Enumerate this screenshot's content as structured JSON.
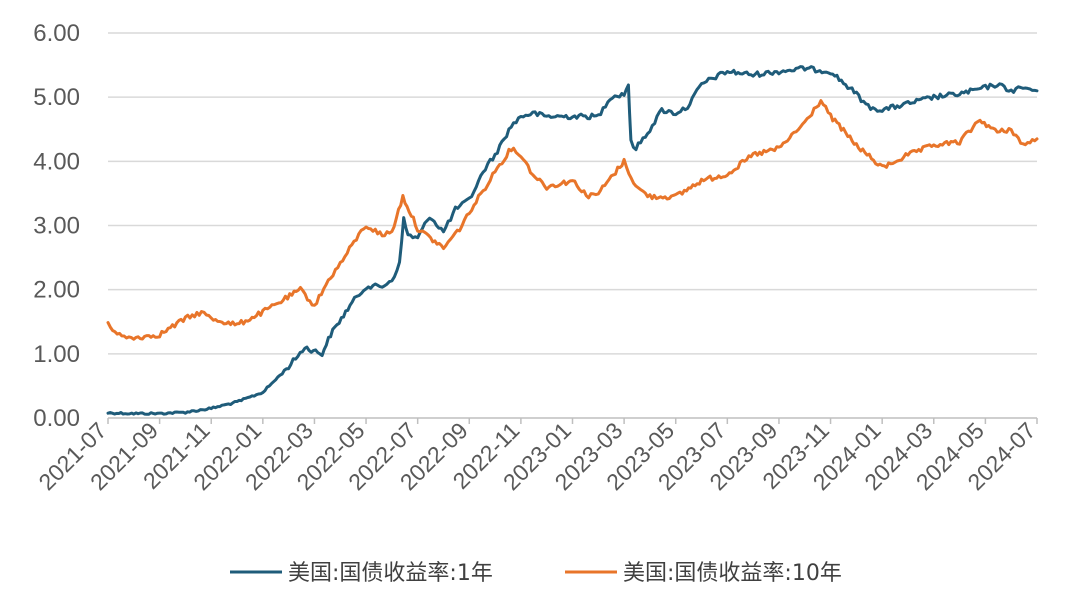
{
  "chart_data": {
    "type": "line",
    "title": "",
    "xlabel": "",
    "ylabel": "",
    "ylim": [
      0,
      6
    ],
    "xlim": [
      "2021-07",
      "2024-07"
    ],
    "grid": true,
    "legend_position": "bottom",
    "yticks": [
      "0.00",
      "1.00",
      "2.00",
      "3.00",
      "4.00",
      "5.00",
      "6.00"
    ],
    "xticks": [
      "2021-07",
      "2021-09",
      "2021-11",
      "2022-01",
      "2022-03",
      "2022-05",
      "2022-07",
      "2022-09",
      "2022-11",
      "2023-01",
      "2023-03",
      "2023-05",
      "2023-07",
      "2023-09",
      "2023-11",
      "2024-01",
      "2024-03",
      "2024-05",
      "2024-07"
    ],
    "series": [
      {
        "name": "美国:国债收益率:1年",
        "color": "#1f5c7a",
        "points": [
          [
            "2021-07-01",
            0.08
          ],
          [
            "2021-08-01",
            0.07
          ],
          [
            "2021-09-01",
            0.07
          ],
          [
            "2021-10-01",
            0.09
          ],
          [
            "2021-11-01",
            0.15
          ],
          [
            "2021-12-01",
            0.25
          ],
          [
            "2022-01-01",
            0.4
          ],
          [
            "2022-02-01",
            0.8
          ],
          [
            "2022-02-20",
            1.1
          ],
          [
            "2022-03-10",
            1.0
          ],
          [
            "2022-03-20",
            1.3
          ],
          [
            "2022-04-15",
            1.8
          ],
          [
            "2022-05-01",
            2.05
          ],
          [
            "2022-05-20",
            2.05
          ],
          [
            "2022-06-01",
            2.15
          ],
          [
            "2022-06-10",
            2.4
          ],
          [
            "2022-06-15",
            3.1
          ],
          [
            "2022-06-20",
            2.85
          ],
          [
            "2022-07-01",
            2.8
          ],
          [
            "2022-07-15",
            3.15
          ],
          [
            "2022-08-01",
            2.9
          ],
          [
            "2022-08-15",
            3.25
          ],
          [
            "2022-09-01",
            3.4
          ],
          [
            "2022-09-20",
            3.9
          ],
          [
            "2022-10-01",
            4.1
          ],
          [
            "2022-10-20",
            4.55
          ],
          [
            "2022-11-01",
            4.7
          ],
          [
            "2022-11-15",
            4.75
          ],
          [
            "2022-12-01",
            4.7
          ],
          [
            "2023-01-01",
            4.7
          ],
          [
            "2023-02-01",
            4.7
          ],
          [
            "2023-02-15",
            5.0
          ],
          [
            "2023-03-01",
            5.05
          ],
          [
            "2023-03-06",
            5.2
          ],
          [
            "2023-03-09",
            4.3
          ],
          [
            "2023-03-15",
            4.2
          ],
          [
            "2023-04-01",
            4.5
          ],
          [
            "2023-04-15",
            4.8
          ],
          [
            "2023-05-01",
            4.75
          ],
          [
            "2023-05-15",
            4.85
          ],
          [
            "2023-06-01",
            5.2
          ],
          [
            "2023-06-15",
            5.3
          ],
          [
            "2023-07-01",
            5.4
          ],
          [
            "2023-08-01",
            5.35
          ],
          [
            "2023-09-01",
            5.4
          ],
          [
            "2023-10-01",
            5.45
          ],
          [
            "2023-11-01",
            5.4
          ],
          [
            "2023-12-01",
            5.05
          ],
          [
            "2023-12-15",
            4.85
          ],
          [
            "2024-01-01",
            4.8
          ],
          [
            "2024-02-01",
            4.9
          ],
          [
            "2024-03-01",
            5.0
          ],
          [
            "2024-04-01",
            5.05
          ],
          [
            "2024-05-01",
            5.15
          ],
          [
            "2024-05-15",
            5.2
          ],
          [
            "2024-06-01",
            5.1
          ],
          [
            "2024-06-15",
            5.15
          ],
          [
            "2024-07-01",
            5.1
          ]
        ]
      },
      {
        "name": "美国:国债收益率:10年",
        "color": "#e8752a",
        "points": [
          [
            "2021-07-01",
            1.45
          ],
          [
            "2021-07-20",
            1.25
          ],
          [
            "2021-08-01",
            1.25
          ],
          [
            "2021-09-01",
            1.3
          ],
          [
            "2021-10-01",
            1.55
          ],
          [
            "2021-10-20",
            1.65
          ],
          [
            "2021-11-01",
            1.55
          ],
          [
            "2021-12-01",
            1.45
          ],
          [
            "2022-01-01",
            1.65
          ],
          [
            "2022-01-20",
            1.8
          ],
          [
            "2022-02-15",
            2.0
          ],
          [
            "2022-03-01",
            1.75
          ],
          [
            "2022-03-20",
            2.2
          ],
          [
            "2022-04-01",
            2.4
          ],
          [
            "2022-04-20",
            2.8
          ],
          [
            "2022-05-01",
            3.0
          ],
          [
            "2022-05-20",
            2.85
          ],
          [
            "2022-06-01",
            2.9
          ],
          [
            "2022-06-14",
            3.45
          ],
          [
            "2022-07-01",
            2.95
          ],
          [
            "2022-08-01",
            2.65
          ],
          [
            "2022-08-20",
            2.95
          ],
          [
            "2022-09-01",
            3.2
          ],
          [
            "2022-09-20",
            3.6
          ],
          [
            "2022-10-01",
            3.85
          ],
          [
            "2022-10-20",
            4.2
          ],
          [
            "2022-11-01",
            4.1
          ],
          [
            "2022-11-15",
            3.8
          ],
          [
            "2022-12-01",
            3.6
          ],
          [
            "2023-01-01",
            3.7
          ],
          [
            "2023-01-20",
            3.45
          ],
          [
            "2023-02-01",
            3.5
          ],
          [
            "2023-03-01",
            4.0
          ],
          [
            "2023-03-15",
            3.6
          ],
          [
            "2023-04-01",
            3.45
          ],
          [
            "2023-05-01",
            3.45
          ],
          [
            "2023-06-01",
            3.7
          ],
          [
            "2023-07-01",
            3.8
          ],
          [
            "2023-08-01",
            4.1
          ],
          [
            "2023-09-01",
            4.2
          ],
          [
            "2023-10-01",
            4.6
          ],
          [
            "2023-10-20",
            4.95
          ],
          [
            "2023-11-01",
            4.7
          ],
          [
            "2023-12-01",
            4.25
          ],
          [
            "2024-01-01",
            3.9
          ],
          [
            "2024-02-01",
            4.1
          ],
          [
            "2024-03-01",
            4.25
          ],
          [
            "2024-04-01",
            4.3
          ],
          [
            "2024-04-25",
            4.65
          ],
          [
            "2024-05-15",
            4.45
          ],
          [
            "2024-06-01",
            4.5
          ],
          [
            "2024-06-15",
            4.25
          ],
          [
            "2024-07-01",
            4.35
          ]
        ]
      }
    ]
  }
}
